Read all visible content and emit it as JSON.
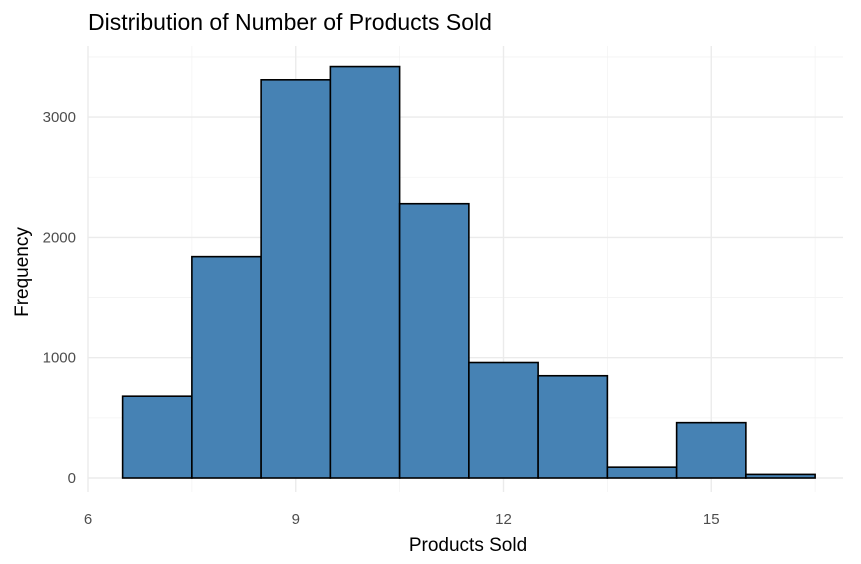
{
  "chart_data": {
    "type": "bar",
    "title": "Distribution of Number of Products Sold",
    "xlabel": "Products Sold",
    "ylabel": "Frequency",
    "bins": [
      {
        "x": 7,
        "value": 680
      },
      {
        "x": 8,
        "value": 1840
      },
      {
        "x": 9,
        "value": 3310
      },
      {
        "x": 10,
        "value": 3420
      },
      {
        "x": 11,
        "value": 2280
      },
      {
        "x": 12,
        "value": 960
      },
      {
        "x": 13,
        "value": 850
      },
      {
        "x": 14,
        "value": 90
      },
      {
        "x": 15,
        "value": 460
      },
      {
        "x": 16,
        "value": 30
      }
    ],
    "bin_width": 1,
    "xlim": [
      6,
      16.5
    ],
    "ylim": [
      0,
      3420
    ],
    "x_ticks": [
      6,
      9,
      12,
      15
    ],
    "y_ticks": [
      0,
      1000,
      2000,
      3000
    ],
    "grid": true,
    "colors": {
      "fill": "#4682b4",
      "outline": "#000000"
    }
  }
}
